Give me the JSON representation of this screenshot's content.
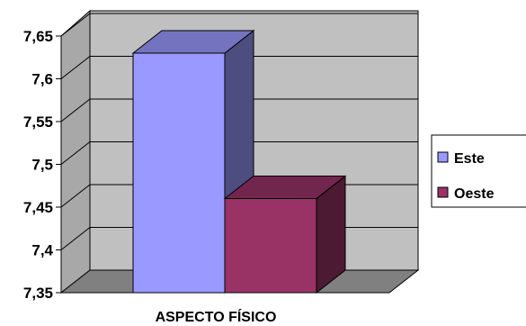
{
  "chart_data": {
    "type": "bar",
    "three_d": true,
    "categories": [
      "ASPECTO FÍSICO"
    ],
    "series": [
      {
        "name": "Este",
        "values": [
          7.63
        ],
        "color": "#9999FF",
        "side_color": "#4D4D80",
        "top_color": "#7373BF"
      },
      {
        "name": "Oeste",
        "values": [
          7.46
        ],
        "color": "#993366",
        "side_color": "#4D1A33",
        "top_color": "#73264D"
      }
    ],
    "ylim": [
      7.35,
      7.65
    ],
    "yticks": [
      "7,35",
      "7,4",
      "7,45",
      "7,5",
      "7,55",
      "7,6",
      "7,65"
    ],
    "grid": true,
    "legend_position": "right",
    "wall_color": "#C0C0C0",
    "floor_color": "#808080"
  }
}
